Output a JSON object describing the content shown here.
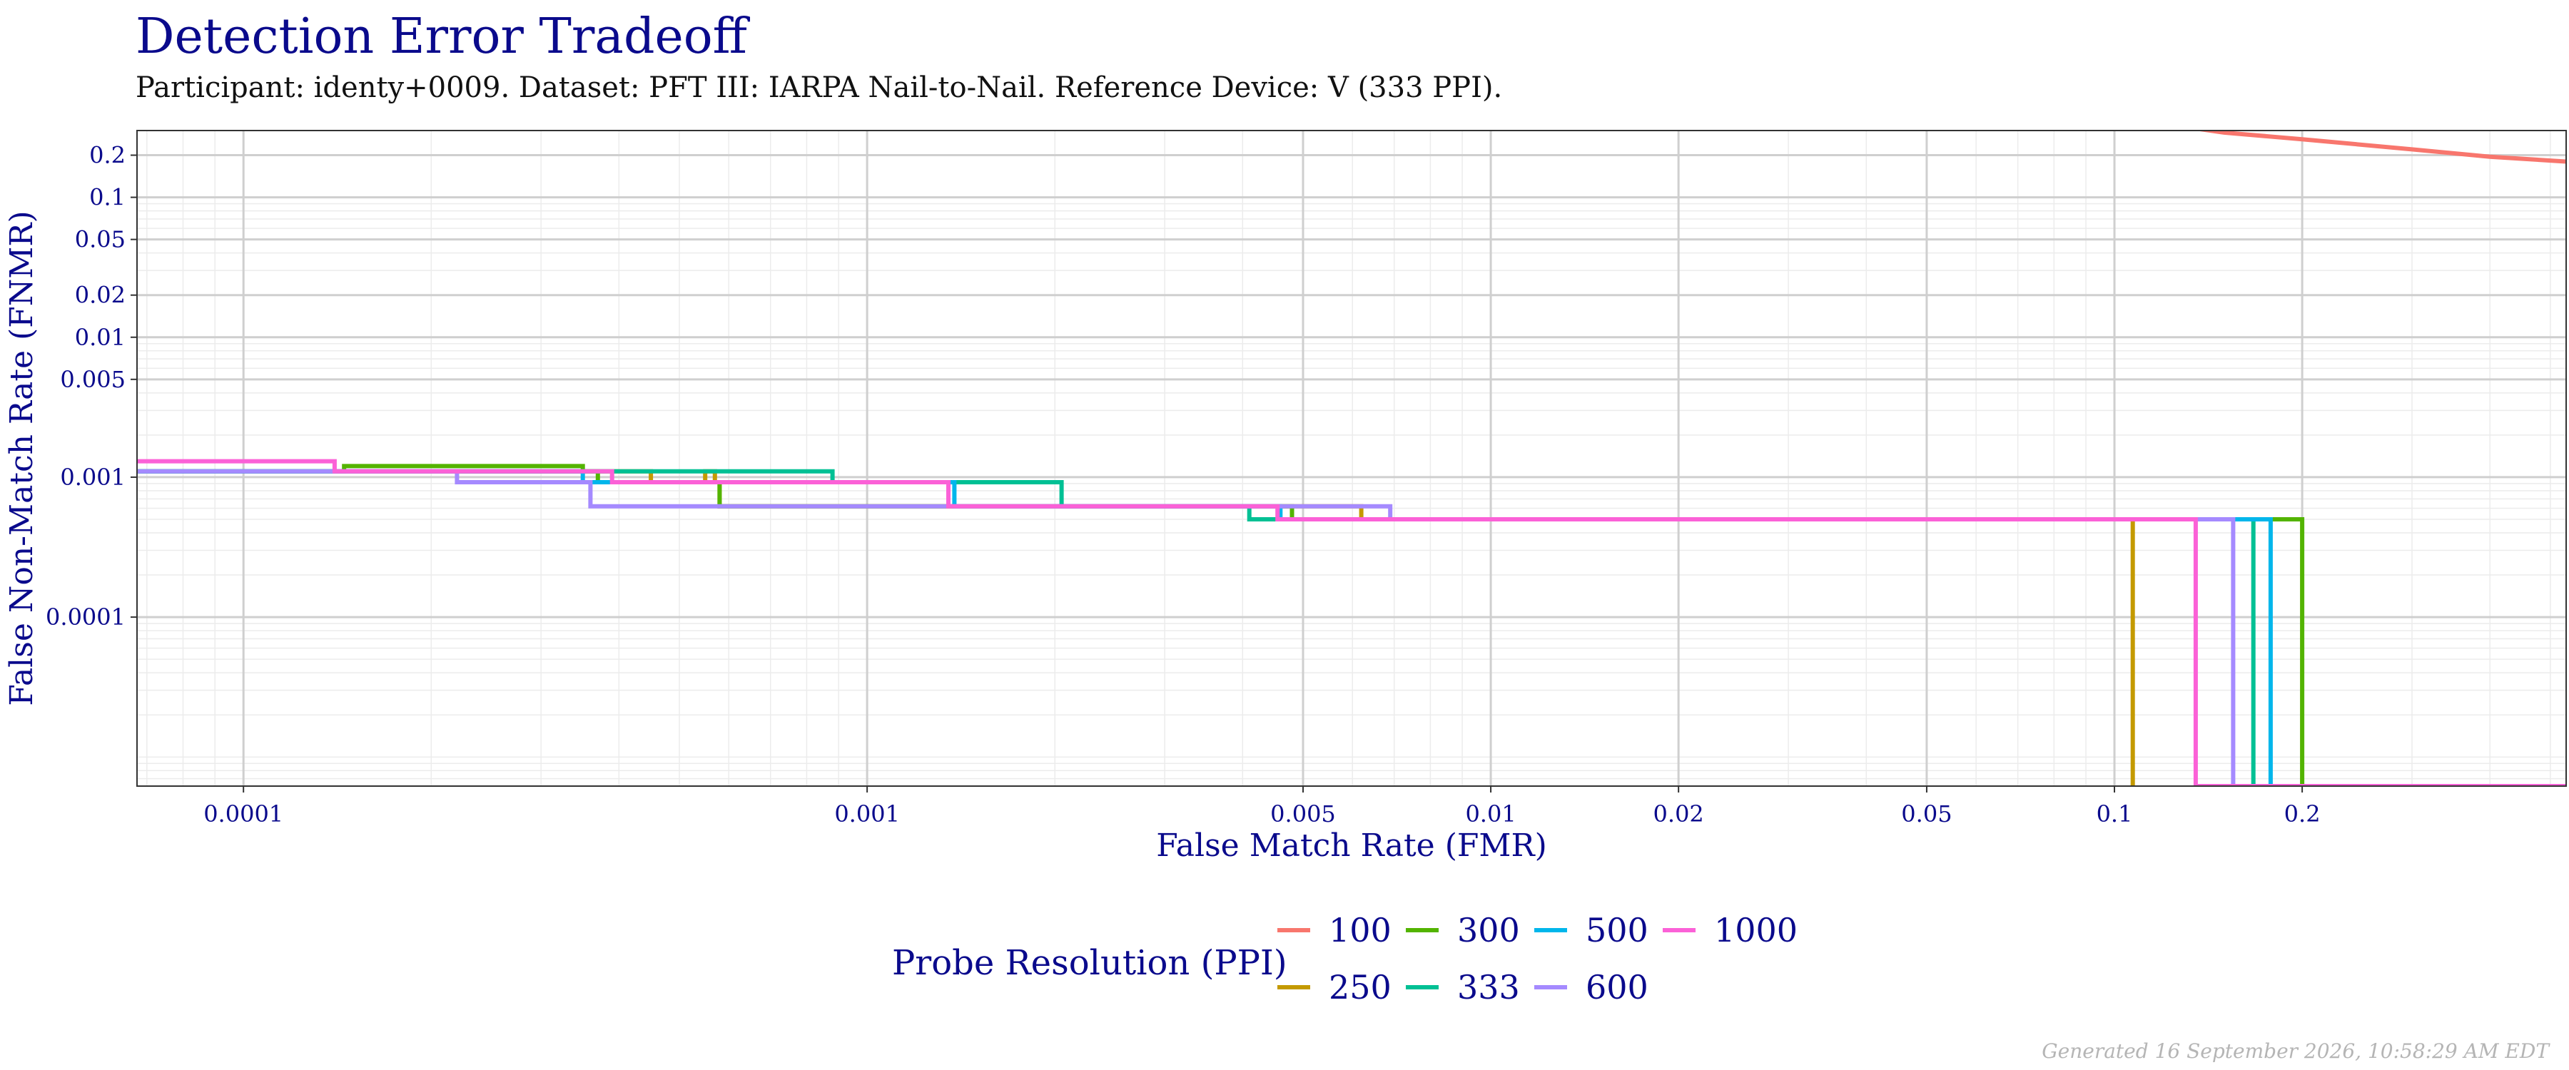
{
  "title": "Detection Error Tradeoff",
  "subtitle": "Participant: identy+0009. Dataset: PFT III: IARPA Nail-to-Nail. Reference Device: V (333 PPI).",
  "footer": "Generated 16 September 2026, 10:58:29 AM EDT",
  "chart_data": {
    "type": "line",
    "xlabel": "False Match Rate (FMR)",
    "ylabel": "False Non-Match Rate (FNMR)",
    "x_scale": "log",
    "y_scale": "log",
    "xlim": [
      6.75e-05,
      0.53
    ],
    "ylim": [
      6.2e-06,
      0.3
    ],
    "x_ticks": [
      0.0001,
      0.001,
      0.005,
      0.01,
      0.02,
      0.05,
      0.1,
      0.2
    ],
    "x_tick_labels": [
      "0.0001",
      "0.001",
      "0.005",
      "0.01",
      "0.02",
      "0.05",
      "0.1",
      "0.2"
    ],
    "y_ticks": [
      0.0001,
      0.001,
      0.005,
      0.01,
      0.02,
      0.05,
      0.1,
      0.2
    ],
    "y_tick_labels": [
      "0.0001",
      "0.001",
      "0.005",
      "0.01",
      "0.02",
      "0.05",
      "0.1",
      "0.2"
    ],
    "grid": true,
    "legend_title": "Probe Resolution (PPI)",
    "legend_position": "bottom",
    "series": [
      {
        "name": "100",
        "color": "#F8766D",
        "points": [
          [
            0.135,
            0.31
          ],
          [
            0.15,
            0.29
          ],
          [
            0.2,
            0.26
          ],
          [
            0.3,
            0.22
          ],
          [
            0.4,
            0.195
          ],
          [
            0.53,
            0.18
          ]
        ]
      },
      {
        "name": "250",
        "color": "#C49A00",
        "points": [
          [
            6.75e-05,
            0.0011
          ],
          [
            0.000145,
            0.0011
          ],
          [
            0.000145,
            0.0011
          ],
          [
            0.00045,
            0.0011
          ],
          [
            0.00045,
            0.00092
          ],
          [
            0.00055,
            0.00092
          ],
          [
            0.00055,
            0.0011
          ],
          [
            0.00057,
            0.0011
          ],
          [
            0.00057,
            0.00092
          ],
          [
            0.00058,
            0.00092
          ],
          [
            0.00058,
            0.00062
          ],
          [
            0.0062,
            0.00062
          ],
          [
            0.0062,
            0.0005
          ],
          [
            0.107,
            0.0005
          ],
          [
            0.107,
            6.2e-06
          ]
        ]
      },
      {
        "name": "300",
        "color": "#53B400",
        "points": [
          [
            6.75e-05,
            0.0011
          ],
          [
            0.000145,
            0.0011
          ],
          [
            0.000145,
            0.0012
          ],
          [
            0.00035,
            0.0012
          ],
          [
            0.00035,
            0.0011
          ],
          [
            0.00037,
            0.0011
          ],
          [
            0.00037,
            0.00092
          ],
          [
            0.00058,
            0.00092
          ],
          [
            0.00058,
            0.00062
          ],
          [
            0.0048,
            0.00062
          ],
          [
            0.0048,
            0.0005
          ],
          [
            0.2,
            0.0005
          ],
          [
            0.2,
            6.2e-06
          ]
        ]
      },
      {
        "name": "333",
        "color": "#00C094",
        "points": [
          [
            6.75e-05,
            0.0011
          ],
          [
            0.000145,
            0.0011
          ],
          [
            0.000145,
            0.0011
          ],
          [
            0.00036,
            0.0011
          ],
          [
            0.00036,
            0.0011
          ],
          [
            0.00088,
            0.0011
          ],
          [
            0.00088,
            0.00092
          ],
          [
            0.00205,
            0.00092
          ],
          [
            0.00205,
            0.00062
          ],
          [
            0.0041,
            0.00062
          ],
          [
            0.0041,
            0.0005
          ],
          [
            0.167,
            0.0005
          ],
          [
            0.167,
            6.2e-06
          ]
        ]
      },
      {
        "name": "500",
        "color": "#00B6EB",
        "points": [
          [
            6.75e-05,
            0.0011
          ],
          [
            0.00035,
            0.0011
          ],
          [
            0.00035,
            0.00092
          ],
          [
            0.00138,
            0.00092
          ],
          [
            0.00138,
            0.00062
          ],
          [
            0.0046,
            0.00062
          ],
          [
            0.0046,
            0.0005
          ],
          [
            0.178,
            0.0005
          ],
          [
            0.178,
            6.2e-06
          ]
        ]
      },
      {
        "name": "600",
        "color": "#A58AFF",
        "points": [
          [
            6.75e-05,
            0.0011
          ],
          [
            0.00022,
            0.0011
          ],
          [
            0.00022,
            0.00092
          ],
          [
            0.00036,
            0.00092
          ],
          [
            0.00036,
            0.00062
          ],
          [
            0.0069,
            0.00062
          ],
          [
            0.0069,
            0.0005
          ],
          [
            0.155,
            0.0005
          ],
          [
            0.155,
            6.2e-06
          ]
        ]
      },
      {
        "name": "1000",
        "color": "#FB61D7",
        "points": [
          [
            6.75e-05,
            0.0013
          ],
          [
            0.00014,
            0.0013
          ],
          [
            0.00014,
            0.0011
          ],
          [
            0.00039,
            0.0011
          ],
          [
            0.00039,
            0.00092
          ],
          [
            0.00135,
            0.00092
          ],
          [
            0.00135,
            0.00062
          ],
          [
            0.00455,
            0.00062
          ],
          [
            0.00455,
            0.0005
          ],
          [
            0.135,
            0.0005
          ],
          [
            0.135,
            6.2e-06
          ],
          [
            0.53,
            6.2e-06
          ]
        ]
      }
    ]
  }
}
